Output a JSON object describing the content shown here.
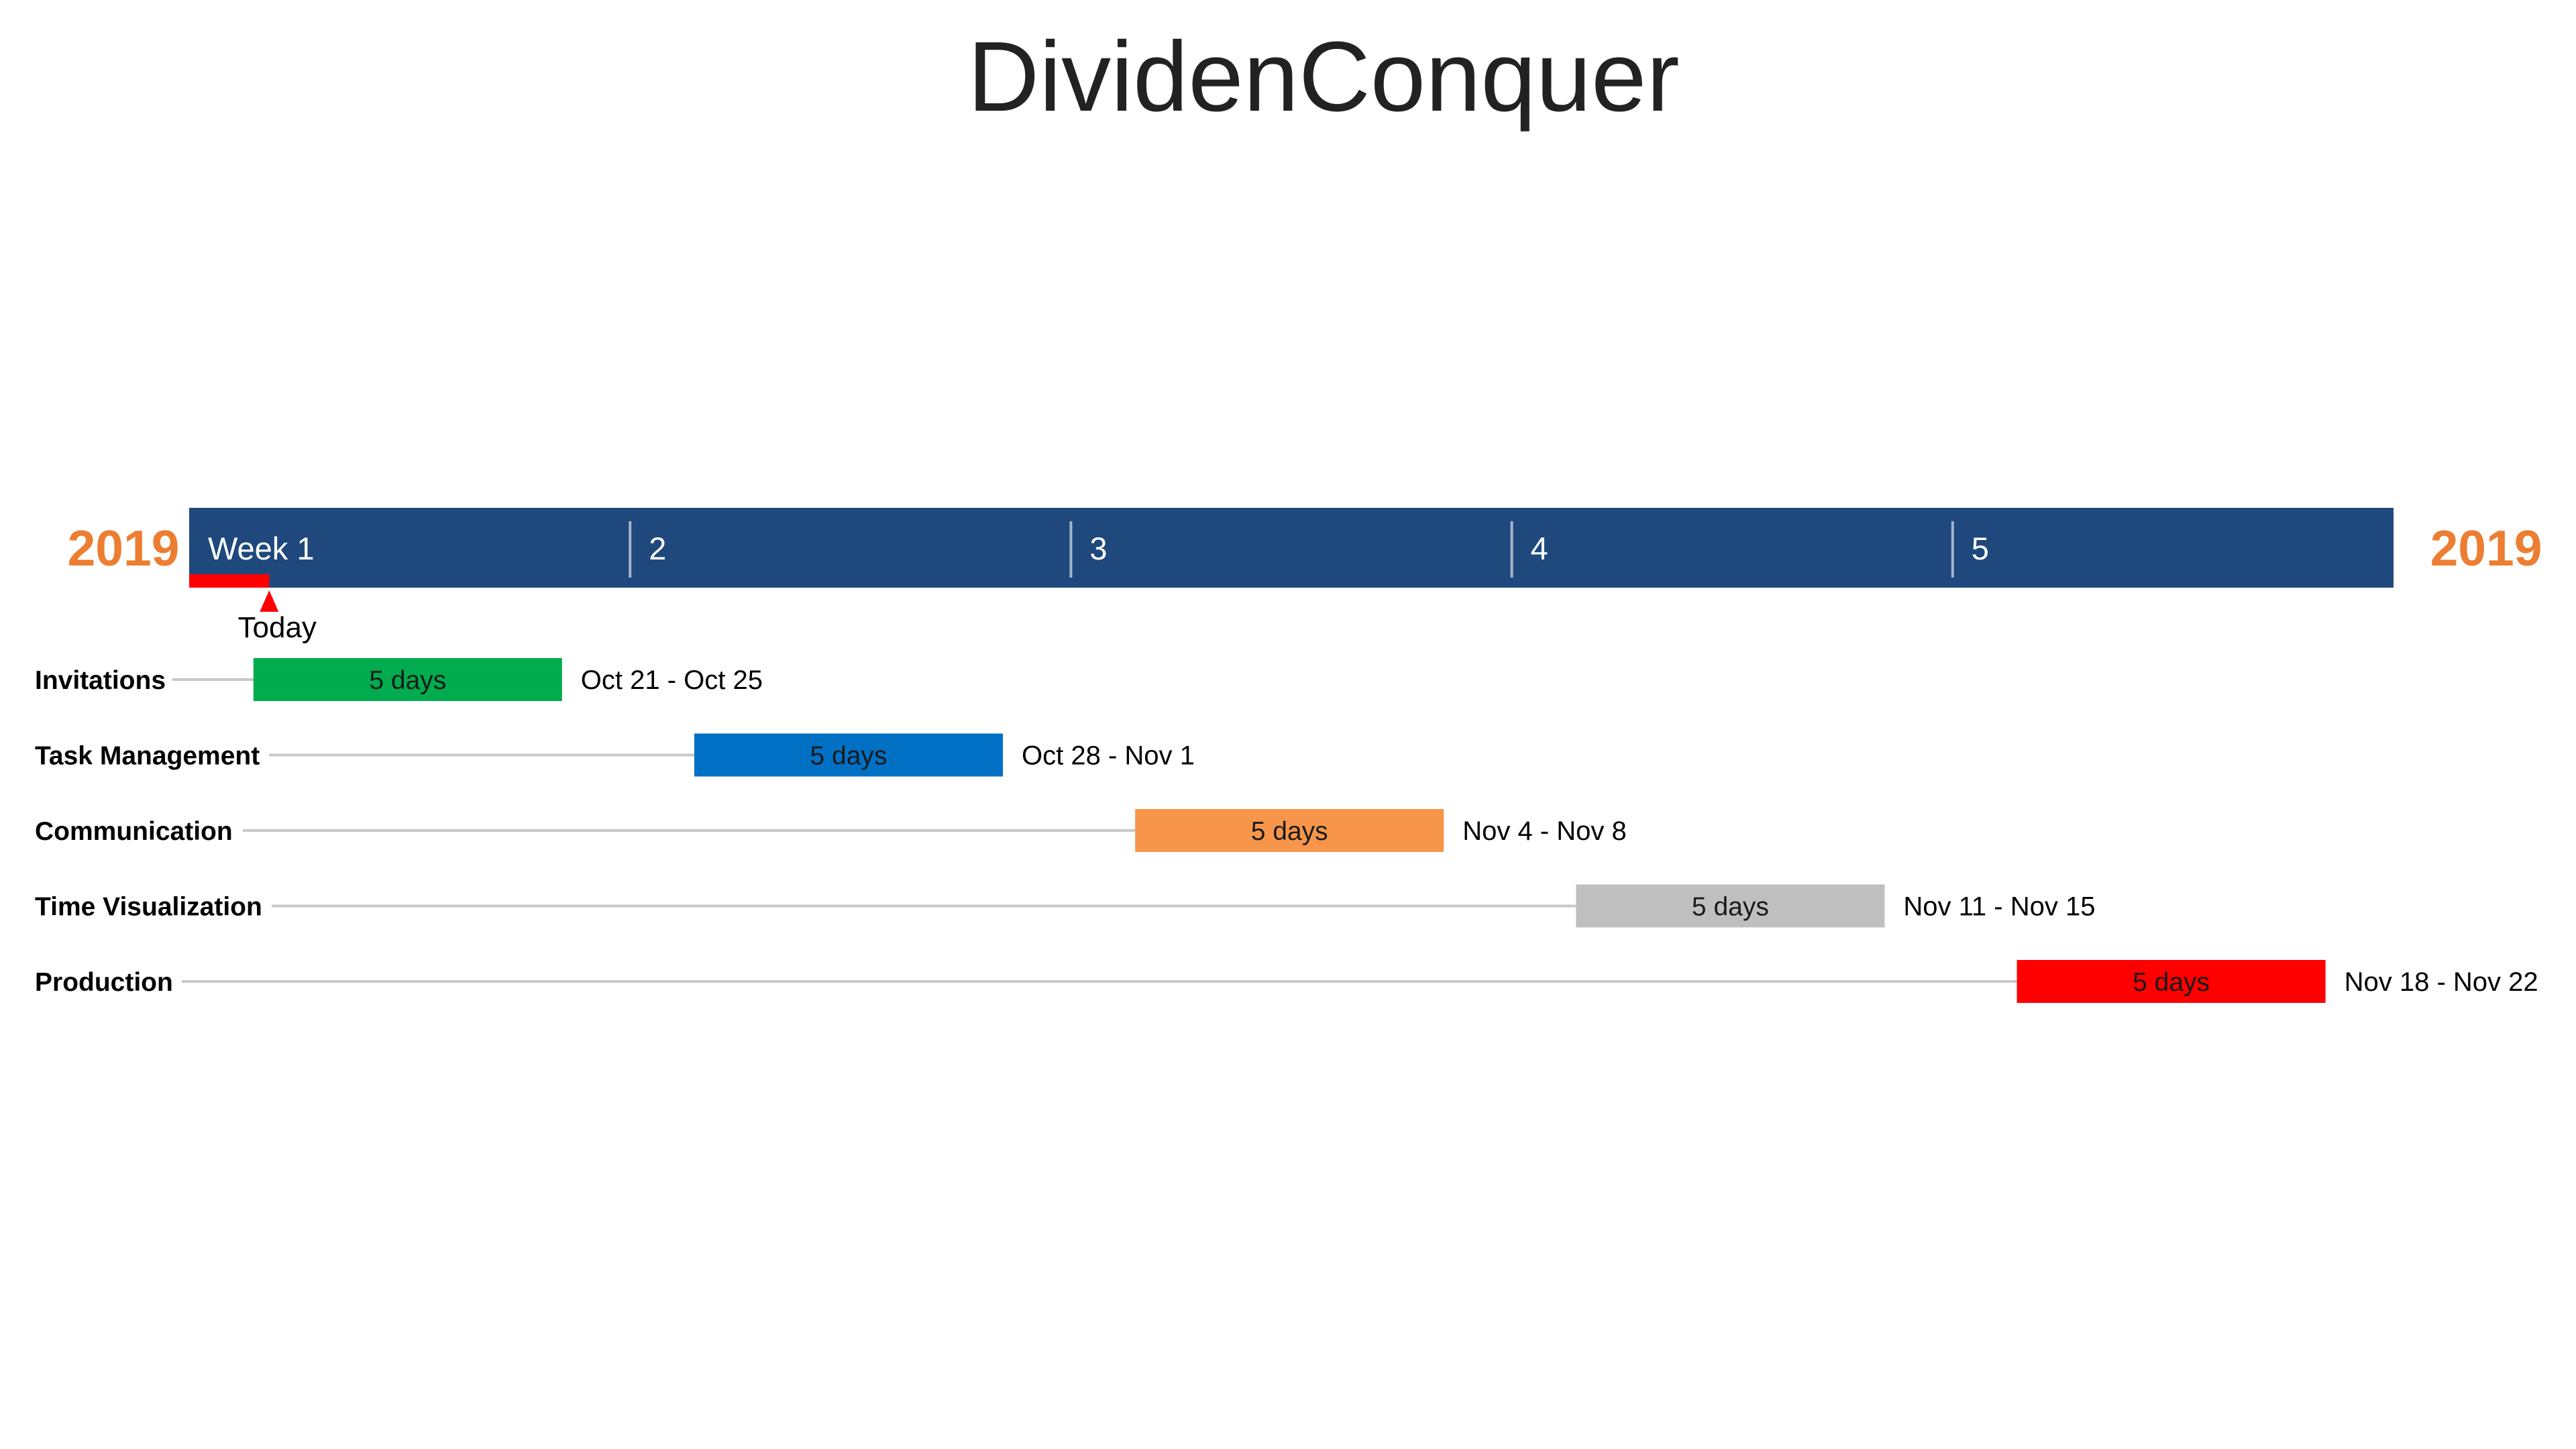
{
  "chart_data": {
    "type": "gantt",
    "title": "DividenConquer",
    "year_start": "2019",
    "year_end": "2019",
    "timeline_start": "2019-10-20",
    "timeline_end": "2019-11-24",
    "weeks": [
      "Week 1",
      "2",
      "3",
      "4",
      "5"
    ],
    "today": {
      "label": "Today",
      "date": "2019-10-21"
    },
    "tasks": [
      {
        "name": "Invitations",
        "start": "2019-10-21",
        "end": "2019-10-25",
        "duration_label": "5 days",
        "date_label": "Oct 21 - Oct 25",
        "color": "#00AC4E",
        "label_color": "#1a1a1a"
      },
      {
        "name": "Task Management",
        "start": "2019-10-28",
        "end": "2019-11-01",
        "duration_label": "5 days",
        "date_label": "Oct 28 - Nov 1",
        "color": "#0070C5",
        "label_color": "#1a1a1a"
      },
      {
        "name": "Communication",
        "start": "2019-11-04",
        "end": "2019-11-08",
        "duration_label": "5 days",
        "date_label": "Nov 4 - Nov 8",
        "color": "#F7964A",
        "label_color": "#1a1a1a"
      },
      {
        "name": "Time Visualization",
        "start": "2019-11-11",
        "end": "2019-11-15",
        "duration_label": "5 days",
        "date_label": "Nov 11 - Nov 15",
        "color": "#BFBFBF",
        "label_color": "#1a1a1a"
      },
      {
        "name": "Production",
        "start": "2019-11-18",
        "end": "2019-11-22",
        "duration_label": "5 days",
        "date_label": "Nov 18 - Nov 22",
        "color": "#FF0000",
        "label_color": "#1a1a1a"
      }
    ],
    "colors": {
      "timeline": "#1F497D",
      "year": "#ED7D31",
      "today_marker": "#FF0000",
      "connector": "#C8C8C8",
      "week_divider": "#A6B4C8"
    }
  }
}
